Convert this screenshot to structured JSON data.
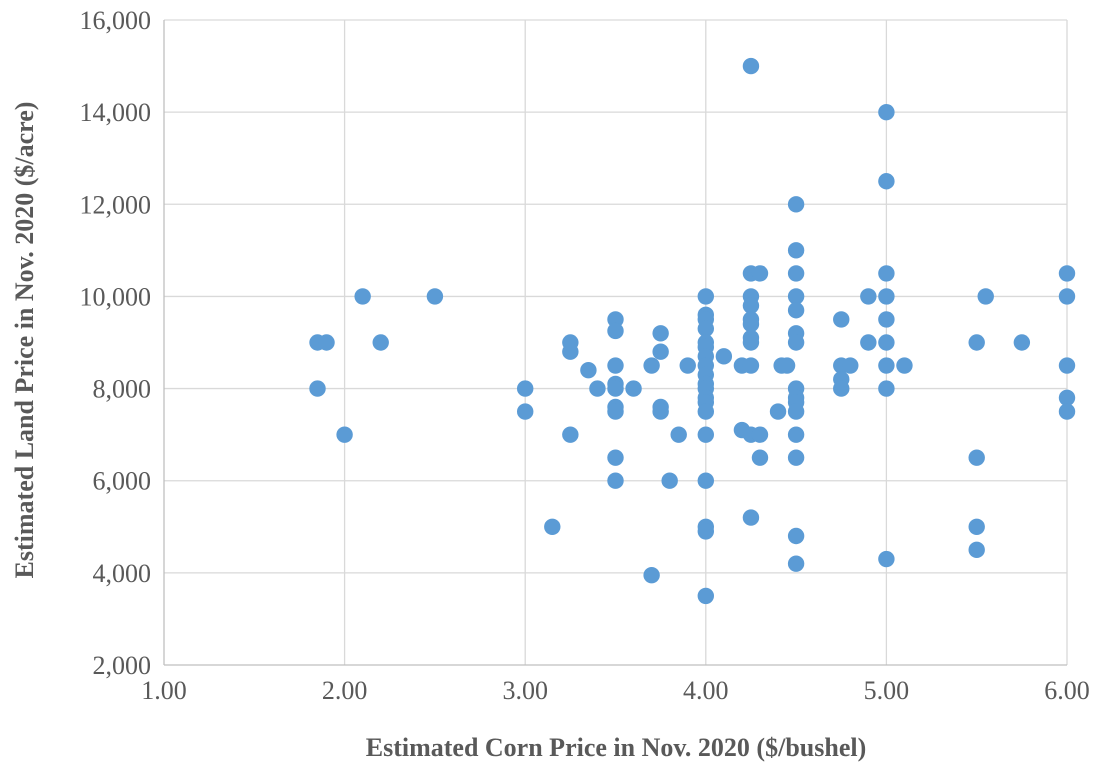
{
  "chart_data": {
    "type": "scatter",
    "title": "",
    "xlabel": "Estimated Corn Price in Nov. 2020 ($/bushel)",
    "ylabel": "Estimated Land Price in Nov. 2020 ($/acre)",
    "xlim": [
      1.0,
      6.0
    ],
    "ylim": [
      2000,
      16000
    ],
    "x_ticks": [
      "1.00",
      "2.00",
      "3.00",
      "4.00",
      "5.00",
      "6.00"
    ],
    "y_ticks": [
      "2,000",
      "4,000",
      "6,000",
      "8,000",
      "10,000",
      "12,000",
      "14,000",
      "16,000"
    ],
    "x_tick_values": [
      1,
      2,
      3,
      4,
      5,
      6
    ],
    "y_tick_values": [
      2000,
      4000,
      6000,
      8000,
      10000,
      12000,
      14000,
      16000
    ],
    "grid": true,
    "legend": "none",
    "marker_color": "#5b9bd5",
    "series": [
      {
        "points": [
          [
            1.85,
            9000
          ],
          [
            1.9,
            9000
          ],
          [
            1.85,
            8000
          ],
          [
            2.0,
            7000
          ],
          [
            2.1,
            10000
          ],
          [
            2.2,
            9000
          ],
          [
            2.5,
            10000
          ],
          [
            3.0,
            8000
          ],
          [
            3.0,
            7500
          ],
          [
            3.15,
            5000
          ],
          [
            3.25,
            9000
          ],
          [
            3.25,
            8800
          ],
          [
            3.25,
            7000
          ],
          [
            3.35,
            8400
          ],
          [
            3.4,
            8000
          ],
          [
            3.5,
            9500
          ],
          [
            3.5,
            9250
          ],
          [
            3.5,
            8500
          ],
          [
            3.5,
            8100
          ],
          [
            3.5,
            8000
          ],
          [
            3.5,
            7600
          ],
          [
            3.5,
            7500
          ],
          [
            3.5,
            6500
          ],
          [
            3.5,
            6000
          ],
          [
            3.6,
            8000
          ],
          [
            3.7,
            8500
          ],
          [
            3.7,
            3950
          ],
          [
            3.75,
            9200
          ],
          [
            3.75,
            8800
          ],
          [
            3.75,
            7600
          ],
          [
            3.75,
            7500
          ],
          [
            3.8,
            6000
          ],
          [
            3.85,
            7000
          ],
          [
            3.9,
            8500
          ],
          [
            4.0,
            10000
          ],
          [
            4.0,
            9600
          ],
          [
            4.0,
            9500
          ],
          [
            4.0,
            9300
          ],
          [
            4.0,
            9000
          ],
          [
            4.0,
            8900
          ],
          [
            4.0,
            8700
          ],
          [
            4.0,
            8500
          ],
          [
            4.0,
            8300
          ],
          [
            4.0,
            8100
          ],
          [
            4.0,
            8000
          ],
          [
            4.0,
            7800
          ],
          [
            4.0,
            7700
          ],
          [
            4.0,
            7500
          ],
          [
            4.0,
            7000
          ],
          [
            4.0,
            6000
          ],
          [
            4.0,
            5000
          ],
          [
            4.0,
            4900
          ],
          [
            4.0,
            3500
          ],
          [
            4.1,
            8700
          ],
          [
            4.2,
            8500
          ],
          [
            4.2,
            7100
          ],
          [
            4.25,
            15000
          ],
          [
            4.25,
            10500
          ],
          [
            4.25,
            10000
          ],
          [
            4.25,
            9800
          ],
          [
            4.25,
            9500
          ],
          [
            4.25,
            9400
          ],
          [
            4.25,
            9100
          ],
          [
            4.25,
            9000
          ],
          [
            4.25,
            8500
          ],
          [
            4.25,
            7000
          ],
          [
            4.25,
            5200
          ],
          [
            4.3,
            10500
          ],
          [
            4.3,
            7000
          ],
          [
            4.3,
            6500
          ],
          [
            4.4,
            7500
          ],
          [
            4.42,
            8500
          ],
          [
            4.45,
            8500
          ],
          [
            4.5,
            12000
          ],
          [
            4.5,
            11000
          ],
          [
            4.5,
            10500
          ],
          [
            4.5,
            10000
          ],
          [
            4.5,
            9700
          ],
          [
            4.5,
            9200
          ],
          [
            4.5,
            9000
          ],
          [
            4.5,
            8000
          ],
          [
            4.5,
            7800
          ],
          [
            4.5,
            7700
          ],
          [
            4.5,
            7500
          ],
          [
            4.5,
            7000
          ],
          [
            4.5,
            6500
          ],
          [
            4.5,
            4800
          ],
          [
            4.5,
            4200
          ],
          [
            4.75,
            9500
          ],
          [
            4.75,
            8500
          ],
          [
            4.75,
            8200
          ],
          [
            4.75,
            8000
          ],
          [
            4.8,
            8500
          ],
          [
            4.9,
            10000
          ],
          [
            4.9,
            9000
          ],
          [
            5.0,
            14000
          ],
          [
            5.0,
            12500
          ],
          [
            5.0,
            10500
          ],
          [
            5.0,
            10000
          ],
          [
            5.0,
            9500
          ],
          [
            5.0,
            9000
          ],
          [
            5.0,
            8500
          ],
          [
            5.0,
            8000
          ],
          [
            5.0,
            4300
          ],
          [
            5.1,
            8500
          ],
          [
            5.5,
            9000
          ],
          [
            5.5,
            6500
          ],
          [
            5.5,
            5000
          ],
          [
            5.5,
            4500
          ],
          [
            5.55,
            10000
          ],
          [
            5.75,
            9000
          ],
          [
            6.0,
            10500
          ],
          [
            6.0,
            10000
          ],
          [
            6.0,
            8500
          ],
          [
            6.0,
            7800
          ],
          [
            6.0,
            7500
          ]
        ]
      }
    ]
  }
}
